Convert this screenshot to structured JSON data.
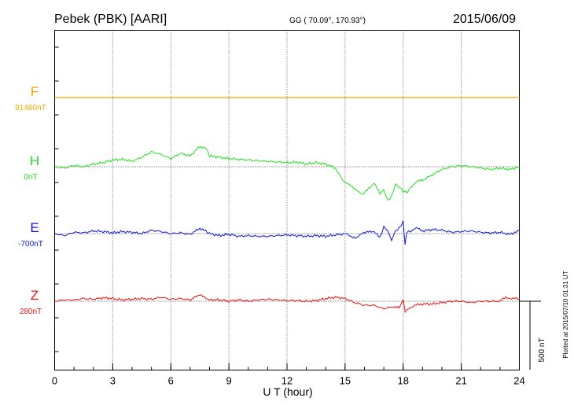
{
  "header": {
    "station": "Pebek (PBK)  [AARI]",
    "coords": "GG ( 70.09°, 170.93°)",
    "date": "2015/06/09"
  },
  "plotted_note": "Plotted at 2015/07/10 01:31  UT",
  "chart_data": {
    "type": "line",
    "title": "Pebek (PBK)  [AARI]",
    "xlabel": "U T (hour)",
    "ylabel": "",
    "xlim": [
      0,
      24
    ],
    "x_ticks": [
      "0",
      "3",
      "6",
      "9",
      "12",
      "15",
      "18",
      "21",
      "24"
    ],
    "scale_bar": {
      "label": "500 nT",
      "value_nT": 500
    },
    "series": [
      {
        "name": "F",
        "baseline_label": "91460nT",
        "color": "#f0a800",
        "x": [
          0,
          24
        ],
        "deviation_nT": [
          0,
          0
        ]
      },
      {
        "name": "H",
        "baseline_label": "0nT",
        "color": "#22e022",
        "x": [
          0,
          0.5,
          1,
          1.5,
          2,
          2.5,
          3,
          3.5,
          4,
          4.5,
          5,
          5.5,
          6,
          6.5,
          7,
          7.5,
          7.8,
          8,
          8.5,
          9,
          9.5,
          10,
          10.5,
          11,
          11.5,
          12,
          12.5,
          13,
          13.5,
          14,
          14.5,
          14.8,
          15,
          15.3,
          15.6,
          15.9,
          16.2,
          16.5,
          16.8,
          17,
          17.2,
          17.4,
          17.6,
          17.8,
          18,
          18.2,
          18.4,
          18.7,
          19,
          19.5,
          20,
          20.5,
          21,
          21.5,
          22,
          22.5,
          23,
          23.5,
          24
        ],
        "deviation_nT": [
          0,
          -10,
          10,
          0,
          20,
          30,
          50,
          55,
          40,
          70,
          110,
          90,
          60,
          100,
          80,
          150,
          140,
          80,
          70,
          60,
          55,
          50,
          45,
          40,
          35,
          30,
          35,
          20,
          30,
          20,
          -10,
          -80,
          -120,
          -140,
          -170,
          -210,
          -160,
          -120,
          -200,
          -170,
          -250,
          -220,
          -130,
          -150,
          -180,
          -190,
          -150,
          -110,
          -100,
          -60,
          -20,
          0,
          10,
          0,
          -10,
          -20,
          -10,
          -20,
          0
        ]
      },
      {
        "name": "E",
        "baseline_label": "-700nT",
        "color": "#1414d8",
        "x": [
          0,
          0.5,
          1,
          1.5,
          2,
          2.5,
          3,
          3.5,
          4,
          4.5,
          5,
          5.5,
          6,
          6.5,
          7,
          7.5,
          7.8,
          8,
          8.5,
          9,
          9.5,
          10,
          10.5,
          11,
          11.5,
          12,
          12.5,
          13,
          13.5,
          14,
          14.5,
          15,
          15.3,
          15.6,
          15.9,
          16.2,
          16.5,
          16.8,
          17,
          17.2,
          17.4,
          17.6,
          17.8,
          18,
          18.1,
          18.2,
          18.4,
          18.7,
          19,
          19.5,
          20,
          20.5,
          21,
          21.5,
          22,
          22.5,
          23,
          23.5,
          24
        ],
        "deviation_nT": [
          0,
          -15,
          10,
          5,
          20,
          15,
          5,
          15,
          10,
          0,
          25,
          15,
          0,
          5,
          -5,
          40,
          20,
          0,
          -15,
          -5,
          -20,
          -15,
          -20,
          -20,
          -15,
          -10,
          -15,
          -20,
          -15,
          -20,
          -10,
          0,
          -20,
          -30,
          0,
          20,
          10,
          -30,
          50,
          20,
          -50,
          20,
          40,
          90,
          -80,
          10,
          20,
          40,
          20,
          30,
          25,
          10,
          15,
          20,
          10,
          5,
          10,
          -5,
          20
        ]
      },
      {
        "name": "Z",
        "baseline_label": "280nT",
        "color": "#e81414",
        "x": [
          0,
          0.5,
          1,
          1.5,
          2,
          2.5,
          3,
          3.5,
          4,
          4.5,
          5,
          5.5,
          6,
          6.5,
          7,
          7.5,
          7.8,
          8,
          8.5,
          9,
          9.5,
          10,
          10.5,
          11,
          11.5,
          12,
          12.5,
          13,
          13.5,
          14,
          14.5,
          15,
          15.5,
          16,
          16.5,
          17,
          17.5,
          17.8,
          18,
          18.1,
          18.3,
          18.6,
          19,
          19.5,
          20,
          20.5,
          21,
          21.5,
          22,
          22.5,
          23,
          23.3,
          23.6,
          24
        ],
        "deviation_nT": [
          0,
          10,
          10,
          20,
          15,
          25,
          20,
          10,
          15,
          20,
          15,
          30,
          15,
          20,
          10,
          50,
          20,
          10,
          10,
          0,
          10,
          0,
          10,
          15,
          10,
          5,
          5,
          0,
          5,
          20,
          30,
          20,
          -10,
          -30,
          -30,
          -55,
          -40,
          -50,
          10,
          -80,
          -50,
          -30,
          -20,
          -20,
          -10,
          0,
          0,
          -10,
          0,
          0,
          0,
          30,
          20,
          20
        ]
      }
    ],
    "legend": "left"
  }
}
